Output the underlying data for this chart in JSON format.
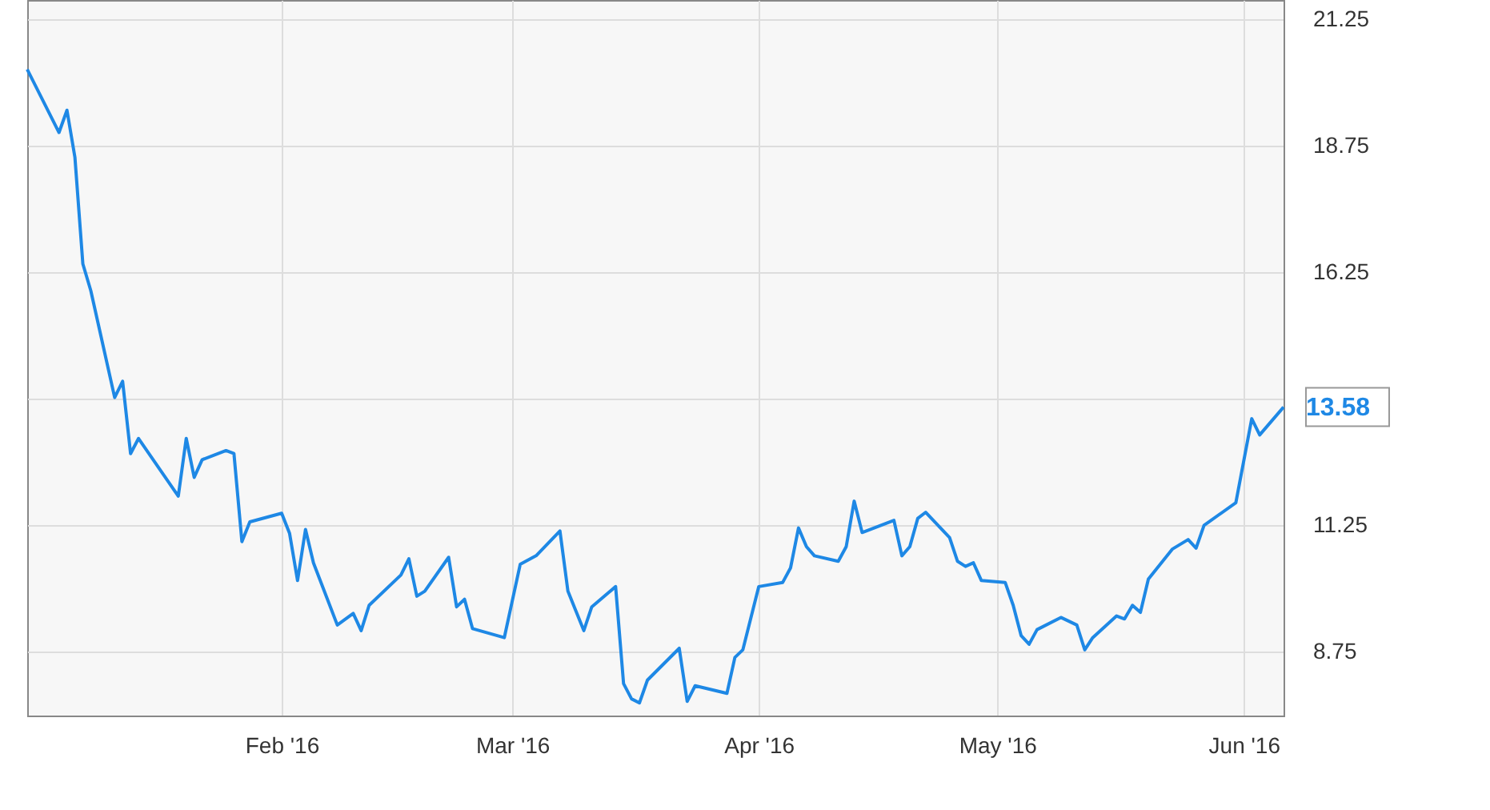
{
  "chart_data": {
    "type": "line",
    "x": [
      "2015-12-31",
      "2016-01-04",
      "2016-01-05",
      "2016-01-06",
      "2016-01-07",
      "2016-01-08",
      "2016-01-11",
      "2016-01-12",
      "2016-01-13",
      "2016-01-14",
      "2016-01-19",
      "2016-01-20",
      "2016-01-21",
      "2016-01-22",
      "2016-01-25",
      "2016-01-26",
      "2016-01-27",
      "2016-01-28",
      "2016-02-01",
      "2016-02-02",
      "2016-02-03",
      "2016-02-04",
      "2016-02-05",
      "2016-02-08",
      "2016-02-10",
      "2016-02-11",
      "2016-02-12",
      "2016-02-16",
      "2016-02-17",
      "2016-02-18",
      "2016-02-19",
      "2016-02-22",
      "2016-02-23",
      "2016-02-24",
      "2016-02-25",
      "2016-02-29",
      "2016-03-02",
      "2016-03-04",
      "2016-03-07",
      "2016-03-08",
      "2016-03-10",
      "2016-03-11",
      "2016-03-14",
      "2016-03-15",
      "2016-03-16",
      "2016-03-17",
      "2016-03-18",
      "2016-03-22",
      "2016-03-23",
      "2016-03-24",
      "2016-03-28",
      "2016-03-29",
      "2016-03-30",
      "2016-04-01",
      "2016-04-04",
      "2016-04-05",
      "2016-04-06",
      "2016-04-07",
      "2016-04-08",
      "2016-04-11",
      "2016-04-12",
      "2016-04-13",
      "2016-04-14",
      "2016-04-18",
      "2016-04-19",
      "2016-04-20",
      "2016-04-21",
      "2016-04-22",
      "2016-04-25",
      "2016-04-26",
      "2016-04-27",
      "2016-04-28",
      "2016-04-29",
      "2016-05-02",
      "2016-05-03",
      "2016-05-04",
      "2016-05-05",
      "2016-05-06",
      "2016-05-09",
      "2016-05-11",
      "2016-05-12",
      "2016-05-13",
      "2016-05-16",
      "2016-05-17",
      "2016-05-18",
      "2016-05-19",
      "2016-05-20",
      "2016-05-23",
      "2016-05-25",
      "2016-05-26",
      "2016-05-27",
      "2016-05-31",
      "2016-06-02",
      "2016-06-03",
      "2016-06-06"
    ],
    "series": [
      {
        "color": "#1e88e5",
        "values": [
          20.26,
          19.01,
          19.45,
          18.52,
          16.41,
          15.88,
          13.77,
          14.09,
          12.66,
          12.96,
          11.82,
          12.96,
          12.19,
          12.54,
          12.72,
          12.66,
          10.92,
          11.31,
          11.48,
          11.08,
          10.15,
          11.16,
          10.5,
          9.27,
          9.5,
          9.16,
          9.66,
          10.26,
          10.58,
          9.84,
          9.94,
          10.61,
          9.63,
          9.78,
          9.2,
          9.02,
          10.47,
          10.64,
          11.13,
          9.94,
          9.16,
          9.63,
          10.03,
          8.11,
          7.81,
          7.73,
          8.18,
          8.81,
          7.76,
          8.07,
          7.92,
          8.63,
          8.78,
          10.03,
          10.11,
          10.4,
          11.19,
          10.82,
          10.64,
          10.53,
          10.82,
          11.72,
          11.1,
          11.34,
          10.64,
          10.82,
          11.38,
          11.5,
          11.0,
          10.53,
          10.43,
          10.5,
          10.15,
          10.11,
          9.66,
          9.06,
          8.89,
          9.18,
          9.42,
          9.27,
          8.78,
          9.02,
          9.45,
          9.39,
          9.66,
          9.52,
          10.18,
          10.77,
          10.96,
          10.79,
          11.24,
          11.69,
          13.35,
          13.03,
          13.58
        ],
        "value_labels": [
          null,
          null,
          null,
          null,
          null,
          null,
          null,
          null,
          null,
          null,
          null,
          null,
          null,
          null,
          null,
          null,
          null,
          null,
          null,
          null,
          null,
          null,
          null,
          null,
          null,
          null,
          null,
          null,
          null,
          null,
          null,
          null,
          null,
          null,
          null,
          null,
          null,
          null,
          null,
          null,
          null,
          null,
          null,
          null,
          null,
          null,
          null,
          null,
          null,
          null,
          null,
          null,
          null,
          null,
          null,
          null,
          null,
          null,
          null,
          null,
          null,
          null,
          null,
          null,
          null,
          null,
          null,
          null,
          null,
          null,
          null,
          null,
          null,
          null,
          null,
          null,
          null,
          null,
          null,
          null,
          null,
          null,
          null,
          null,
          null,
          null,
          null,
          null,
          null,
          null,
          null,
          null,
          null,
          null,
          "13.58"
        ]
      }
    ],
    "xlim": [
      "2015-12-31",
      "2016-06-06"
    ],
    "xticks": [
      {
        "value": "2016-02-01",
        "label": "Feb '16"
      },
      {
        "value": "2016-03-01",
        "label": "Mar '16"
      },
      {
        "value": "2016-04-01",
        "label": "Apr '16"
      },
      {
        "value": "2016-05-01",
        "label": "May '16"
      },
      {
        "value": "2016-06-01",
        "label": "Jun '16"
      }
    ],
    "ylim": [
      7.48,
      21.63
    ],
    "yticks": [
      8.75,
      11.25,
      {
        "value": 13.75,
        "label": null
      },
      16.25,
      18.75,
      21.25
    ],
    "grid": true,
    "marker": "none",
    "line_style": "solid"
  }
}
